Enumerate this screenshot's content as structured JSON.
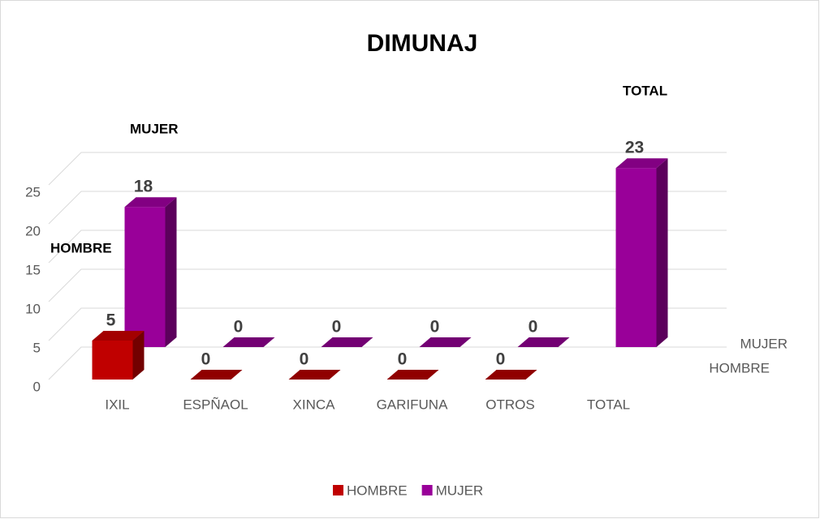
{
  "chart_data": {
    "type": "bar3d",
    "title": "DIMUNAJ",
    "categories": [
      "IXIL",
      "ESPÑAOL",
      "XINCA",
      "GARIFUNA",
      "OTROS",
      "TOTAL"
    ],
    "series": [
      {
        "name": "HOMBRE",
        "color": "#c00000",
        "values": [
          5,
          0,
          0,
          0,
          0,
          null
        ]
      },
      {
        "name": "MUJER",
        "color": "#990099",
        "values": [
          18,
          0,
          0,
          0,
          0,
          23
        ]
      }
    ],
    "ylim": [
      0,
      25
    ],
    "yticks": [
      0,
      5,
      10,
      15,
      20,
      25
    ],
    "grid": true,
    "depth_labels": [
      "MUJER",
      "HOMBRE"
    ],
    "annotations": [
      "MUJER",
      "HOMBRE",
      "TOTAL"
    ],
    "legend": "bottom"
  }
}
